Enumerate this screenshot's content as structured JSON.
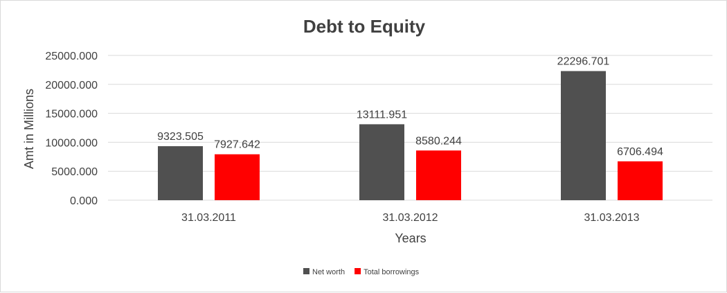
{
  "chart_data": {
    "type": "bar",
    "title": "Debt to Equity",
    "xlabel": "Years",
    "ylabel": "Amt in Millions",
    "categories": [
      "31.03.2011",
      "31.03.2012",
      "31.03.2013"
    ],
    "series": [
      {
        "name": "Net worth",
        "color": "#505050",
        "values": [
          9323.505,
          13111.951,
          22296.701
        ]
      },
      {
        "name": "Total borrowings",
        "color": "#ff0000",
        "values": [
          7927.642,
          8580.244,
          6706.494
        ]
      }
    ],
    "yticks": [
      "0.000",
      "5000.000",
      "10000.000",
      "15000.000",
      "20000.000",
      "25000.000"
    ],
    "ylim": [
      0,
      25000
    ],
    "grid": true,
    "legend": "bottom-center"
  }
}
